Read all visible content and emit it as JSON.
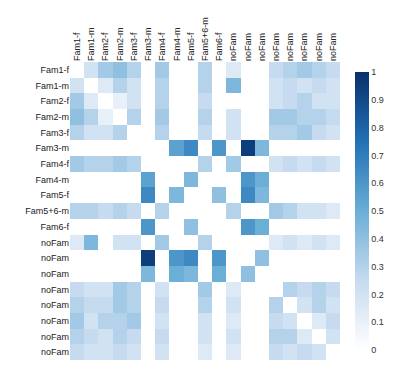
{
  "chart_data": {
    "type": "heatmap",
    "categories": [
      "Fam1-f",
      "Fam1-m",
      "Fam2-f",
      "Fam2-m",
      "Fam3-f",
      "Fam3-m",
      "Fam4-f",
      "Fam4-m",
      "Fam5-f",
      "Fam5+6-m",
      "Fam6-f",
      "noFam",
      "noFam",
      "noFam",
      "noFam",
      "noFam",
      "noFam",
      "noFam",
      "noFam"
    ],
    "values": [
      [
        0,
        0.2,
        0.35,
        0.4,
        0.3,
        0,
        0.35,
        0,
        0,
        0.3,
        0,
        0.15,
        0,
        0,
        0.25,
        0.3,
        0.35,
        0.3,
        0.25
      ],
      [
        0.2,
        0,
        0.15,
        0.3,
        0.2,
        0,
        0.3,
        0,
        0,
        0.3,
        0,
        0.45,
        0,
        0,
        0.2,
        0.25,
        0.2,
        0.25,
        0.2
      ],
      [
        0.35,
        0.15,
        0,
        0.1,
        0.2,
        0,
        0.3,
        0,
        0,
        0.25,
        0,
        0,
        0,
        0,
        0.2,
        0.25,
        0.3,
        0.2,
        0.2
      ],
      [
        0.4,
        0.3,
        0.1,
        0,
        0.3,
        0,
        0.35,
        0,
        0,
        0.3,
        0,
        0.2,
        0,
        0,
        0.35,
        0.35,
        0.3,
        0.3,
        0.25
      ],
      [
        0.3,
        0.2,
        0.2,
        0.3,
        0,
        0,
        0.3,
        0,
        0,
        0.25,
        0,
        0.2,
        0,
        0,
        0.3,
        0.3,
        0.35,
        0.25,
        0.2
      ],
      [
        0,
        0,
        0,
        0,
        0,
        0,
        0,
        0.55,
        0.65,
        0,
        0.6,
        0,
        0.95,
        0.45,
        0,
        0,
        0,
        0,
        0
      ],
      [
        0.35,
        0.3,
        0.3,
        0.35,
        0.3,
        0,
        0,
        0,
        0,
        0.3,
        0,
        0.35,
        0,
        0,
        0.2,
        0.25,
        0.2,
        0.25,
        0.2
      ],
      [
        0,
        0,
        0,
        0,
        0,
        0.55,
        0,
        0,
        0.45,
        0,
        0,
        0,
        0.6,
        0.5,
        0,
        0,
        0,
        0,
        0
      ],
      [
        0,
        0,
        0,
        0,
        0,
        0.65,
        0,
        0.45,
        0,
        0,
        0.4,
        0,
        0.65,
        0.45,
        0,
        0,
        0,
        0,
        0
      ],
      [
        0.3,
        0.3,
        0.25,
        0.3,
        0.25,
        0,
        0.3,
        0,
        0,
        0,
        0,
        0.3,
        0,
        0,
        0.35,
        0.3,
        0.2,
        0.2,
        0.15
      ],
      [
        0,
        0,
        0,
        0,
        0,
        0.6,
        0,
        0,
        0.4,
        0,
        0,
        0,
        0.6,
        0.5,
        0,
        0,
        0,
        0,
        0
      ],
      [
        0.15,
        0.45,
        0,
        0.2,
        0.2,
        0,
        0.35,
        0,
        0,
        0.3,
        0,
        0,
        0,
        0,
        0.15,
        0.2,
        0.15,
        0.2,
        0.15
      ],
      [
        0,
        0,
        0,
        0,
        0,
        0.95,
        0,
        0.6,
        0.65,
        0,
        0.6,
        0,
        0,
        0.4,
        0,
        0,
        0,
        0,
        0
      ],
      [
        0,
        0,
        0,
        0,
        0,
        0.45,
        0,
        0.5,
        0.45,
        0,
        0.5,
        0,
        0.4,
        0,
        0,
        0,
        0,
        0,
        0
      ],
      [
        0.25,
        0.2,
        0.2,
        0.35,
        0.3,
        0,
        0.2,
        0,
        0,
        0.35,
        0,
        0.15,
        0,
        0,
        0,
        0.3,
        0.25,
        0.3,
        0.25
      ],
      [
        0.3,
        0.25,
        0.25,
        0.35,
        0.3,
        0,
        0.25,
        0,
        0,
        0.3,
        0,
        0.2,
        0,
        0,
        0.3,
        0,
        0.2,
        0.3,
        0.2
      ],
      [
        0.35,
        0.2,
        0.3,
        0.3,
        0.35,
        0,
        0.2,
        0,
        0,
        0.2,
        0,
        0.15,
        0,
        0,
        0.25,
        0.2,
        0,
        0.15,
        0.25
      ],
      [
        0.3,
        0.25,
        0.2,
        0.3,
        0.25,
        0,
        0.25,
        0,
        0,
        0.2,
        0,
        0.2,
        0,
        0,
        0.3,
        0.3,
        0.15,
        0,
        0.2
      ],
      [
        0.25,
        0.2,
        0.2,
        0.25,
        0.2,
        0,
        0.2,
        0,
        0,
        0.15,
        0,
        0.15,
        0,
        0,
        0.25,
        0.2,
        0.25,
        0.2,
        0
      ]
    ],
    "zlim": [
      0,
      1
    ],
    "zticks": [
      0,
      0.1,
      0.2,
      0.3,
      0.4,
      0.5,
      0.6,
      0.7,
      0.8,
      0.9,
      1
    ]
  }
}
